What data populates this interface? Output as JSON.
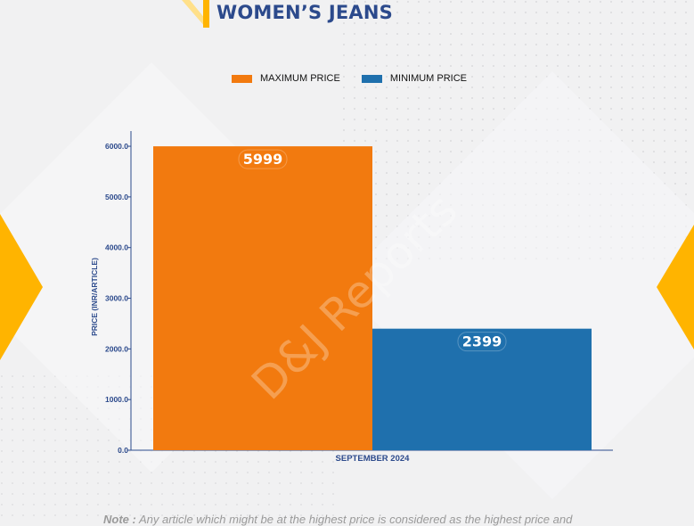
{
  "title": "WOMEN’S JEANS",
  "watermark": "D&J Reports",
  "note": {
    "label": "Note :",
    "text": "Any article which might be at the highest price is considered as the highest price and"
  },
  "colors": {
    "title": "#2c4a8c",
    "max": "#f27a0f",
    "min": "#1f70ad",
    "accent": "#ffb400",
    "axis": "#2c4a8c"
  },
  "legend": {
    "items": [
      {
        "label": "MAXIMUM PRICE",
        "color": "#f27a0f"
      },
      {
        "label": "MINIMUM PRICE",
        "color": "#1f70ad"
      }
    ],
    "position": "top-center"
  },
  "chart_data": {
    "type": "bar",
    "categories": [
      "SEPTEMBER 2024"
    ],
    "series": [
      {
        "name": "MAXIMUM PRICE",
        "values": [
          5999
        ],
        "color": "#f27a0f"
      },
      {
        "name": "MINIMUM PRICE",
        "values": [
          2399
        ],
        "color": "#1f70ad"
      }
    ],
    "data_labels": [
      "5999",
      "2399"
    ],
    "ylabel": "PRICE (INR/ARTICLE)",
    "xlabel": "",
    "ylim": [
      0,
      6300
    ],
    "yticks": [
      0,
      1000,
      2000,
      3000,
      4000,
      5000,
      6000
    ],
    "ytick_labels": [
      "0.0",
      "1000.0",
      "2000.0",
      "3000.0",
      "4000.0",
      "5000.0",
      "6000.0"
    ],
    "grid": false
  }
}
